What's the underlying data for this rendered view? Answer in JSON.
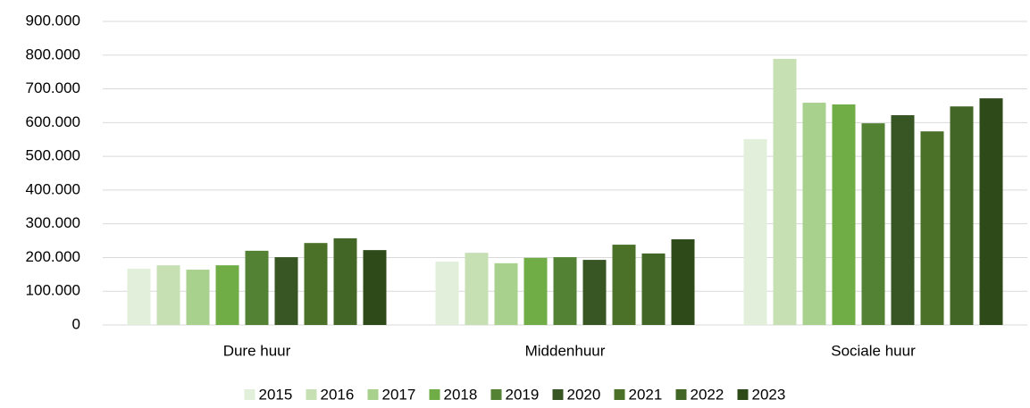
{
  "chart_data": {
    "type": "bar",
    "categories": [
      "Dure huur",
      "Middenhuur",
      "Sociale huur"
    ],
    "series": [
      {
        "name": "2015",
        "color": "#e2efda",
        "values": [
          167000,
          188000,
          551000
        ]
      },
      {
        "name": "2016",
        "color": "#c6e0b4",
        "values": [
          177000,
          214000,
          789000
        ]
      },
      {
        "name": "2017",
        "color": "#a9d18e",
        "values": [
          164000,
          183000,
          659000
        ]
      },
      {
        "name": "2018",
        "color": "#70ad47",
        "values": [
          177000,
          199000,
          654000
        ]
      },
      {
        "name": "2019",
        "color": "#548235",
        "values": [
          220000,
          201000,
          598000
        ]
      },
      {
        "name": "2020",
        "color": "#375623",
        "values": [
          201000,
          193000,
          622000
        ]
      },
      {
        "name": "2021",
        "color": "#4b7028",
        "values": [
          243000,
          238000,
          574000
        ]
      },
      {
        "name": "2022",
        "color": "#426626",
        "values": [
          257000,
          212000,
          648000
        ]
      },
      {
        "name": "2023",
        "color": "#2f4a19",
        "values": [
          222000,
          254000,
          672000
        ]
      }
    ],
    "ylim": [
      0,
      900000
    ],
    "yticks": [
      0,
      {
        "value": 100000,
        "label": "100.000"
      },
      {
        "value": 200000,
        "label": "200.000"
      },
      {
        "value": 300000,
        "label": "300.000"
      },
      {
        "value": 400000,
        "label": "400.000"
      },
      {
        "value": 500000,
        "label": "500.000"
      },
      {
        "value": 600000,
        "label": "600.000"
      },
      {
        "value": 700000,
        "label": "700.000"
      },
      {
        "value": 800000,
        "label": "800.000"
      },
      {
        "value": 900000,
        "label": "900.000"
      }
    ],
    "grid": true,
    "legend": "bottom"
  }
}
